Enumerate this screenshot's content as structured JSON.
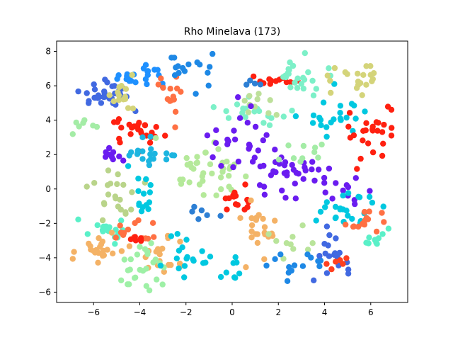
{
  "chart_data": {
    "type": "scatter",
    "title": "Rho Minelava (173)",
    "xlabel": "",
    "ylabel": "",
    "xlim": [
      -7.6,
      7.6
    ],
    "ylim": [
      -6.6,
      8.6
    ],
    "xticks": [
      -6,
      -4,
      -2,
      0,
      2,
      4,
      6
    ],
    "yticks": [
      -6,
      -4,
      -2,
      0,
      2,
      4,
      6,
      8
    ],
    "grid": false,
    "clusters": [
      {
        "color": "#4169e1",
        "center": [
          -5.3,
          5.3
        ],
        "spread": [
          0.7,
          0.6
        ],
        "n": 32
      },
      {
        "color": "#1e90ff",
        "center": [
          -4.0,
          6.6
        ],
        "spread": [
          0.8,
          0.5
        ],
        "n": 22
      },
      {
        "color": "#d4d47a",
        "center": [
          -4.7,
          5.5
        ],
        "spread": [
          0.5,
          0.6
        ],
        "n": 14
      },
      {
        "color": "#ff7043",
        "center": [
          -2.6,
          5.2
        ],
        "spread": [
          0.3,
          0.9
        ],
        "n": 14
      },
      {
        "color": "#1e88e5",
        "center": [
          -2.0,
          7.0
        ],
        "spread": [
          0.9,
          0.6
        ],
        "n": 16
      },
      {
        "color": "#ff2010",
        "center": [
          -4.0,
          3.4
        ],
        "spread": [
          0.8,
          0.5
        ],
        "n": 26
      },
      {
        "color": "#6a1cf0",
        "center": [
          -5.3,
          2.0
        ],
        "spread": [
          0.5,
          0.4
        ],
        "n": 10
      },
      {
        "color": "#a4eca6",
        "center": [
          -6.4,
          3.6
        ],
        "spread": [
          0.4,
          0.3
        ],
        "n": 7
      },
      {
        "color": "#1cb5e0",
        "center": [
          -3.5,
          2.1
        ],
        "spread": [
          0.9,
          0.5
        ],
        "n": 20
      },
      {
        "color": "#b5e99a",
        "center": [
          -1.2,
          1.2
        ],
        "spread": [
          1.0,
          0.9
        ],
        "n": 38
      },
      {
        "color": "#b9d48a",
        "center": [
          -5.3,
          -0.5
        ],
        "spread": [
          0.7,
          0.9
        ],
        "n": 22
      },
      {
        "color": "#00c8e0",
        "center": [
          -3.9,
          -0.3
        ],
        "spread": [
          0.3,
          0.9
        ],
        "n": 14
      },
      {
        "color": "#5af0c8",
        "center": [
          -5.3,
          -2.3
        ],
        "spread": [
          0.9,
          0.4
        ],
        "n": 18
      },
      {
        "color": "#ff7043",
        "center": [
          -4.2,
          -2.5
        ],
        "spread": [
          0.6,
          0.5
        ],
        "n": 14
      },
      {
        "color": "#ff2010",
        "center": [
          -4.2,
          -2.9
        ],
        "spread": [
          0.2,
          0.15
        ],
        "n": 5
      },
      {
        "color": "#f4b266",
        "center": [
          -5.8,
          -3.5
        ],
        "spread": [
          0.5,
          0.5
        ],
        "n": 22
      },
      {
        "color": "#f4b266",
        "center": [
          -2.9,
          -3.8
        ],
        "spread": [
          0.5,
          0.7
        ],
        "n": 18
      },
      {
        "color": "#9ef0a6",
        "center": [
          -3.9,
          -4.4
        ],
        "spread": [
          0.7,
          0.9
        ],
        "n": 26
      },
      {
        "color": "#00c8e0",
        "center": [
          -1.8,
          -3.8
        ],
        "spread": [
          0.8,
          0.9
        ],
        "n": 18
      },
      {
        "color": "#7df0c8",
        "center": [
          1.0,
          4.4
        ],
        "spread": [
          0.9,
          0.4
        ],
        "n": 18
      },
      {
        "color": "#bde09a",
        "center": [
          1.3,
          5.0
        ],
        "spread": [
          0.6,
          0.6
        ],
        "n": 10
      },
      {
        "color": "#ff2010",
        "center": [
          1.8,
          6.3
        ],
        "spread": [
          0.6,
          0.3
        ],
        "n": 12
      },
      {
        "color": "#7df0c8",
        "center": [
          3.0,
          6.3
        ],
        "spread": [
          0.8,
          0.7
        ],
        "n": 24
      },
      {
        "color": "#2d7fd4",
        "center": [
          0.8,
          6.0
        ],
        "spread": [
          0.2,
          0.4
        ],
        "n": 4
      },
      {
        "color": "#6a1cf0",
        "center": [
          0.4,
          2.9
        ],
        "spread": [
          0.9,
          0.8
        ],
        "n": 26
      },
      {
        "color": "#6a1cf0",
        "center": [
          2.6,
          0.8
        ],
        "spread": [
          1.2,
          0.7
        ],
        "n": 36
      },
      {
        "color": "#a4eca6",
        "center": [
          3.2,
          2.1
        ],
        "spread": [
          0.7,
          0.6
        ],
        "n": 10
      },
      {
        "color": "#00c8e0",
        "center": [
          4.3,
          4.3
        ],
        "spread": [
          0.9,
          0.7
        ],
        "n": 22
      },
      {
        "color": "#d4d47a",
        "center": [
          5.3,
          6.4
        ],
        "spread": [
          0.7,
          0.6
        ],
        "n": 20
      },
      {
        "color": "#ff2010",
        "center": [
          5.9,
          3.3
        ],
        "spread": [
          0.6,
          0.8
        ],
        "n": 26
      },
      {
        "color": "#6a1cf0",
        "center": [
          4.8,
          0.0
        ],
        "spread": [
          0.6,
          0.6
        ],
        "n": 10
      },
      {
        "color": "#00c8e0",
        "center": [
          5.1,
          -1.3
        ],
        "spread": [
          1.0,
          0.6
        ],
        "n": 24
      },
      {
        "color": "#ff7043",
        "center": [
          5.7,
          -1.9
        ],
        "spread": [
          0.6,
          0.5
        ],
        "n": 14
      },
      {
        "color": "#5af0c8",
        "center": [
          6.3,
          -2.8
        ],
        "spread": [
          0.4,
          0.5
        ],
        "n": 10
      },
      {
        "color": "#ff2010",
        "center": [
          0.1,
          -0.7
        ],
        "spread": [
          0.5,
          0.4
        ],
        "n": 14
      },
      {
        "color": "#f4b266",
        "center": [
          1.1,
          -2.5
        ],
        "spread": [
          0.6,
          0.9
        ],
        "n": 22
      },
      {
        "color": "#b9e49a",
        "center": [
          2.5,
          -3.1
        ],
        "spread": [
          0.6,
          0.4
        ],
        "n": 10
      },
      {
        "color": "#1e88e5",
        "center": [
          2.6,
          -4.4
        ],
        "spread": [
          1.0,
          0.5
        ],
        "n": 14
      },
      {
        "color": "#4169e1",
        "center": [
          4.4,
          -3.7
        ],
        "spread": [
          0.6,
          0.8
        ],
        "n": 18
      },
      {
        "color": "#ff4020",
        "center": [
          4.6,
          -4.2
        ],
        "spread": [
          0.3,
          0.4
        ],
        "n": 6
      },
      {
        "color": "#00c8e0",
        "center": [
          0.0,
          -4.7
        ],
        "spread": [
          0.5,
          0.5
        ],
        "n": 8
      },
      {
        "color": "#2d7fd4",
        "center": [
          -1.5,
          -1.5
        ],
        "spread": [
          0.5,
          0.5
        ],
        "n": 6
      }
    ]
  }
}
